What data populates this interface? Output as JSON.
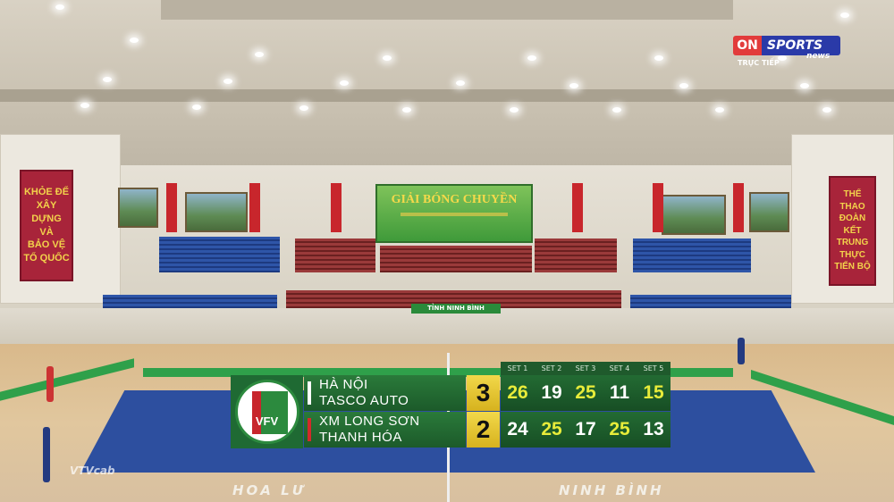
{
  "broadcaster": {
    "on": "ON",
    "sports": "SPORTS",
    "news": "news",
    "live": "TRỰC TIẾP"
  },
  "venue": {
    "left_banner": [
      "KHỎE ĐỂ",
      "XÂY DỰNG",
      "VÀ",
      "BẢO VỆ",
      "TỔ QUỐC"
    ],
    "right_banner": [
      "THỂ THAO",
      "ĐOÀN KẾT",
      "TRUNG THỰC",
      "TIẾN BỘ"
    ],
    "center_banner_title": "GIẢI BÓNG CHUYỀN",
    "province_sign": "TỈNH NINH BÌNH",
    "floor_text_left": "HOA LƯ",
    "floor_text_right": "NINH BÌNH",
    "watermark": "VTVcab"
  },
  "scoreboard": {
    "logo_text": "VFV",
    "logo_ring": "LIÊN ĐOÀN BÓNG CHUYỀN VIỆT NAM",
    "set_labels": [
      "SET 1",
      "SET 2",
      "SET 3",
      "SET 4",
      "SET 5"
    ],
    "teams": [
      {
        "line1": "HÀ NỘI",
        "line2": "TASCO AUTO",
        "sets_won": "3",
        "serve_color": "#ffffff",
        "set_scores": [
          "26",
          "19",
          "25",
          "11",
          "15"
        ],
        "won": [
          true,
          false,
          true,
          false,
          true
        ]
      },
      {
        "line1": "XM LONG SƠN",
        "line2": "THANH HÓA",
        "sets_won": "2",
        "serve_color": "#d42a2a",
        "set_scores": [
          "24",
          "25",
          "17",
          "25",
          "13"
        ],
        "won": [
          false,
          true,
          false,
          true,
          false
        ]
      }
    ],
    "colors": {
      "win": "#e8ec3a",
      "lose": "#ffffff",
      "green": "#1f6a33",
      "gold": "#f2d84a"
    }
  }
}
